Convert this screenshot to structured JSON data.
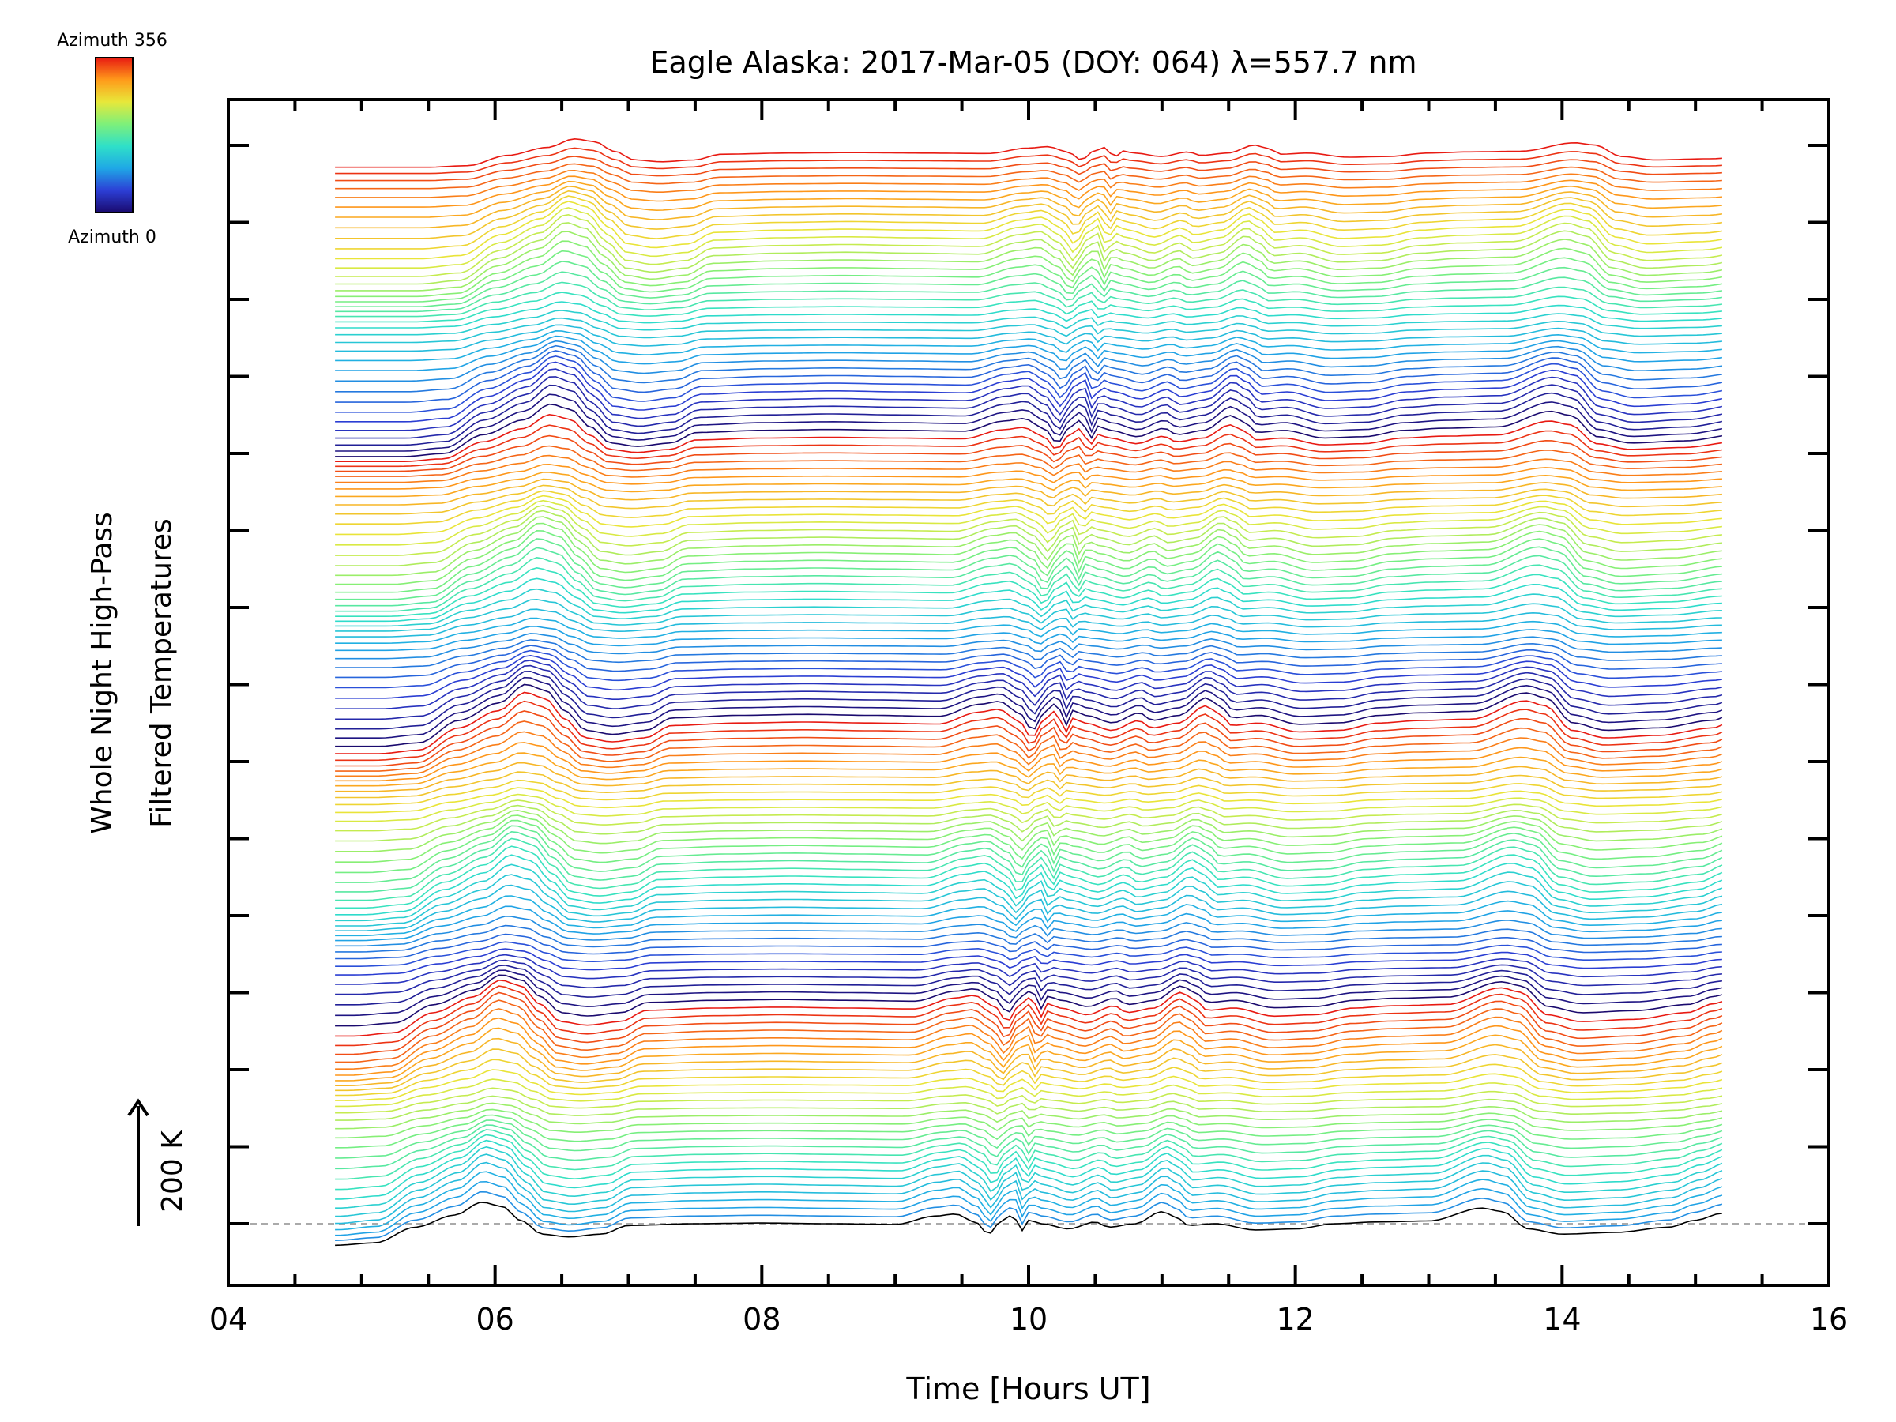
{
  "chart_data": {
    "type": "line",
    "title": "Eagle Alaska: 2017-Mar-05 (DOY: 064) λ=557.7 nm",
    "xlabel": "Time [Hours UT]",
    "ylabel_line1": "Whole Night High-Pass",
    "ylabel_line2": "Filtered Temperatures",
    "xlim": [
      4,
      16
    ],
    "x_ticks": [
      "04",
      "06",
      "08",
      "10",
      "12",
      "14",
      "16"
    ],
    "scale_label": "200 K",
    "colorbar": {
      "top_label": "Azimuth 356",
      "bottom_label": "Azimuth 0",
      "colors": [
        "#1a0a6e",
        "#2c3fd6",
        "#1fa8e6",
        "#2fe0c8",
        "#7ef07a",
        "#e8e83a",
        "#ff9a1a",
        "#e81a12"
      ]
    },
    "stack": {
      "n_traces": 140,
      "x_start": 4.8,
      "x_end": 15.2,
      "keyframes": [
        [
          4.8,
          -0.62
        ],
        [
          5.1,
          -0.55
        ],
        [
          5.4,
          -0.1
        ],
        [
          5.7,
          0.25
        ],
        [
          5.9,
          0.62
        ],
        [
          6.05,
          0.5
        ],
        [
          6.2,
          0.08
        ],
        [
          6.35,
          -0.3
        ],
        [
          6.55,
          -0.38
        ],
        [
          6.8,
          -0.3
        ],
        [
          7.0,
          -0.05
        ],
        [
          7.5,
          0.0
        ],
        [
          8.0,
          0.02
        ],
        [
          8.5,
          0.0
        ],
        [
          9.0,
          -0.02
        ],
        [
          9.3,
          0.22
        ],
        [
          9.45,
          0.28
        ],
        [
          9.6,
          0.05
        ],
        [
          9.7,
          -0.3
        ],
        [
          9.8,
          0.1
        ],
        [
          9.88,
          0.25
        ],
        [
          9.95,
          -0.2
        ],
        [
          10.0,
          0.1
        ],
        [
          10.1,
          0.0
        ],
        [
          10.3,
          -0.15
        ],
        [
          10.5,
          0.05
        ],
        [
          10.6,
          -0.1
        ],
        [
          10.8,
          0.0
        ],
        [
          11.0,
          0.35
        ],
        [
          11.1,
          0.2
        ],
        [
          11.2,
          -0.05
        ],
        [
          11.4,
          0.0
        ],
        [
          11.7,
          -0.18
        ],
        [
          12.0,
          -0.15
        ],
        [
          12.3,
          0.0
        ],
        [
          12.6,
          0.05
        ],
        [
          13.0,
          0.08
        ],
        [
          13.4,
          0.45
        ],
        [
          13.55,
          0.35
        ],
        [
          13.75,
          -0.15
        ],
        [
          14.0,
          -0.3
        ],
        [
          14.4,
          -0.25
        ],
        [
          14.8,
          -0.1
        ],
        [
          15.0,
          0.1
        ],
        [
          15.2,
          0.3
        ]
      ]
    }
  }
}
